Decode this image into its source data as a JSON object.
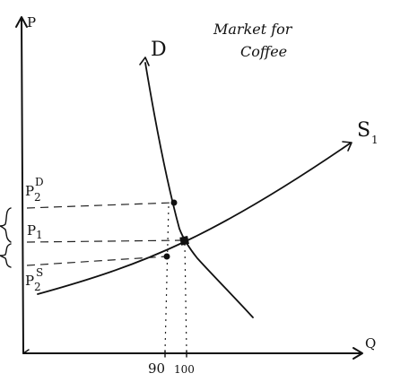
{
  "title": {
    "line1": "Market for",
    "line2": "Coffee"
  },
  "axes": {
    "y_label": "P",
    "x_label": "Q"
  },
  "curves": {
    "demand_label": "D",
    "supply_label": "S",
    "supply_subscript": "1"
  },
  "price_labels": {
    "p2_demand": {
      "base": "P",
      "sub": "2",
      "sup": "D"
    },
    "p1": {
      "base": "P",
      "sub": "1"
    },
    "p2_supply": {
      "base": "P",
      "sub": "2",
      "sup": "S"
    }
  },
  "quantity_labels": {
    "q_90": "90",
    "q_100": "100"
  },
  "colors": {
    "ink": "#111111",
    "background": "#ffffff"
  }
}
